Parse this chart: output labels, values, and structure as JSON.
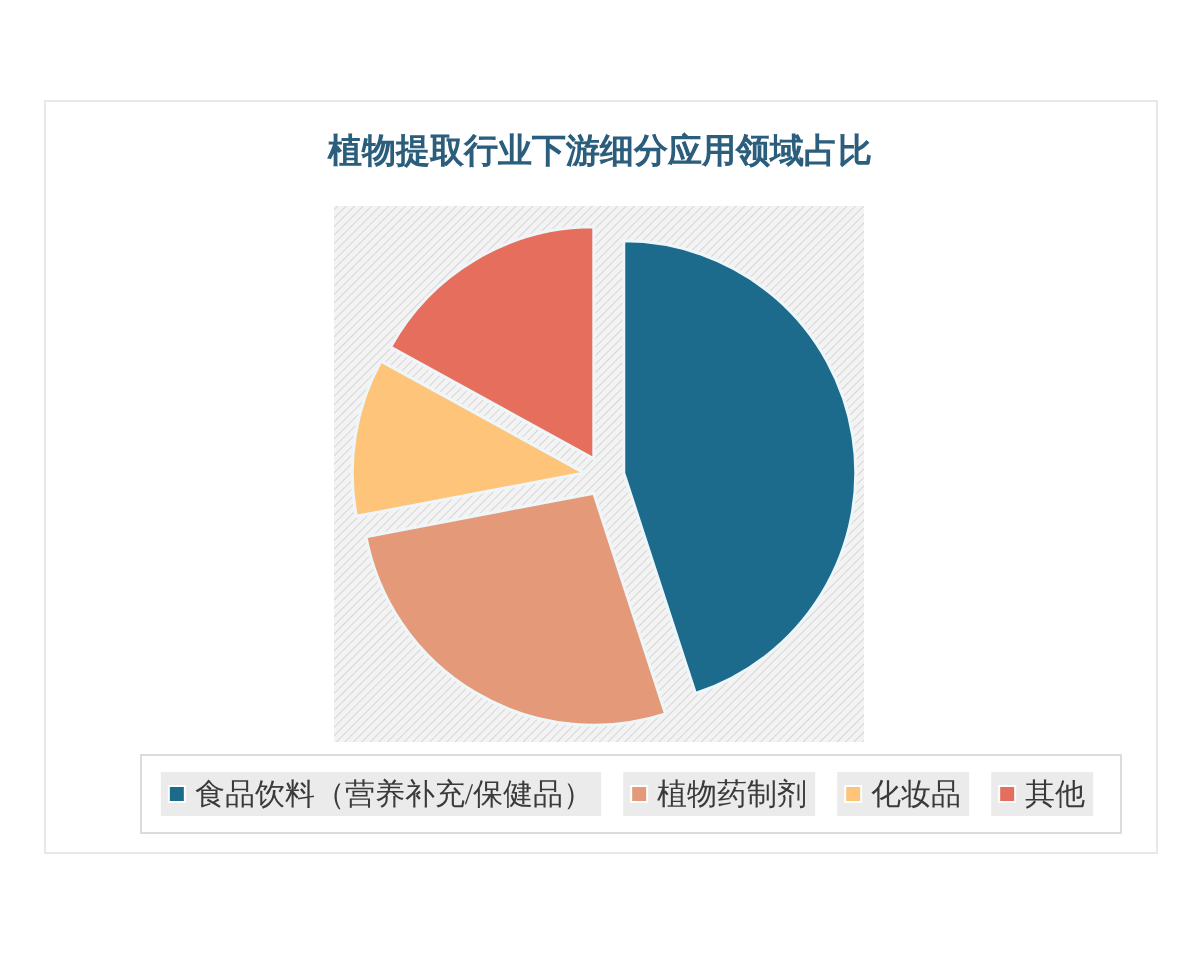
{
  "chart_data": {
    "type": "pie",
    "title": "植物提取行业下游细分应用领域占比",
    "categories": [
      "食品饮料（营养补充/保健品）",
      "植物药制剂",
      "化妆品",
      "其他"
    ],
    "values": [
      45,
      27,
      11,
      17
    ],
    "colors": [
      "#1c6a8c",
      "#e49a78",
      "#fdc47a",
      "#e56f5c"
    ],
    "legend": "bottom"
  }
}
